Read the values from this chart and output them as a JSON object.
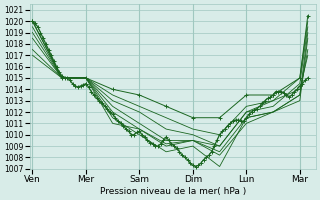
{
  "bg_color": "#d8ece8",
  "grid_color": "#a0c8c0",
  "line_color": "#1a6620",
  "marker_color": "#1a6620",
  "ylabel_bottom": "Pression niveau de la mer( hPa )",
  "ylim": [
    1007,
    1021.5
  ],
  "yticks": [
    1007,
    1008,
    1009,
    1010,
    1011,
    1012,
    1013,
    1014,
    1015,
    1016,
    1017,
    1018,
    1019,
    1020,
    1021
  ],
  "xtick_labels": [
    "Ven",
    "Mer",
    "Sam",
    "Dim",
    "Lun",
    "Mar"
  ],
  "xtick_positions": [
    0,
    1,
    2,
    3,
    4,
    5
  ],
  "xlim": [
    -0.05,
    5.3
  ],
  "series": [
    {
      "x": [
        0.0,
        0.55,
        1.0,
        1.5,
        2.0,
        2.5,
        3.0,
        3.5,
        4.0,
        4.5,
        5.0,
        5.15
      ],
      "y": [
        1020.0,
        1015.0,
        1015.0,
        1014.0,
        1013.5,
        1012.5,
        1011.5,
        1011.5,
        1013.5,
        1013.5,
        1015.0,
        1020.5
      ],
      "with_markers": true
    },
    {
      "x": [
        0.0,
        0.55,
        1.0,
        1.5,
        2.0,
        2.5,
        3.0,
        3.5,
        4.0,
        4.5,
        5.0,
        5.15
      ],
      "y": [
        1020.0,
        1015.0,
        1015.0,
        1013.5,
        1012.5,
        1011.5,
        1010.5,
        1010.0,
        1012.5,
        1013.0,
        1015.0,
        1020.0
      ],
      "with_markers": false
    },
    {
      "x": [
        0.0,
        0.55,
        1.0,
        1.5,
        2.0,
        2.5,
        3.0,
        3.5,
        4.0,
        4.5,
        5.0,
        5.15
      ],
      "y": [
        1019.5,
        1015.0,
        1015.0,
        1013.0,
        1012.0,
        1010.5,
        1010.0,
        1009.0,
        1012.0,
        1012.5,
        1014.5,
        1019.5
      ],
      "with_markers": false
    },
    {
      "x": [
        0.0,
        0.55,
        1.0,
        1.5,
        2.0,
        2.5,
        3.0,
        3.5,
        4.0,
        4.5,
        5.0,
        5.15
      ],
      "y": [
        1019.0,
        1015.0,
        1015.0,
        1012.5,
        1011.0,
        1009.5,
        1009.5,
        1008.5,
        1011.5,
        1012.0,
        1013.5,
        1019.0
      ],
      "with_markers": false
    },
    {
      "x": [
        0.0,
        0.55,
        1.0,
        1.5,
        2.0,
        2.5,
        3.0,
        3.5,
        4.0,
        4.5,
        5.0,
        5.15
      ],
      "y": [
        1018.5,
        1015.0,
        1015.0,
        1012.0,
        1010.5,
        1009.0,
        1009.5,
        1008.2,
        1011.0,
        1012.0,
        1013.0,
        1018.5
      ],
      "with_markers": false
    },
    {
      "x": [
        0.0,
        0.55,
        1.0,
        1.5,
        2.0,
        2.5,
        3.0,
        3.5,
        4.0,
        4.5,
        5.0,
        5.15
      ],
      "y": [
        1017.5,
        1015.0,
        1015.0,
        1011.5,
        1010.0,
        1008.5,
        1009.0,
        1007.2,
        1011.5,
        1012.0,
        1013.5,
        1017.5
      ],
      "with_markers": false
    },
    {
      "x": [
        0.0,
        0.55,
        1.0,
        1.5,
        2.0,
        2.5,
        3.0,
        3.5,
        4.0,
        4.5,
        5.0,
        5.15
      ],
      "y": [
        1017.0,
        1015.0,
        1015.0,
        1011.0,
        1010.5,
        1009.2,
        1009.5,
        1009.0,
        1012.0,
        1013.0,
        1014.0,
        1017.0
      ],
      "with_markers": false
    }
  ],
  "detailed_series": {
    "x_ven_mer": [
      0.0,
      0.05,
      0.1,
      0.15,
      0.2,
      0.25,
      0.3,
      0.35,
      0.4,
      0.45,
      0.5,
      0.55,
      0.6,
      0.65,
      0.7,
      0.75,
      0.8,
      0.85,
      0.9,
      0.95,
      1.0
    ],
    "y_ven_mer": [
      1020.0,
      1019.8,
      1019.5,
      1019.0,
      1018.5,
      1018.0,
      1017.5,
      1017.0,
      1016.5,
      1016.0,
      1015.5,
      1015.2,
      1015.0,
      1015.0,
      1014.8,
      1014.5,
      1014.3,
      1014.2,
      1014.3,
      1014.4,
      1014.5
    ],
    "x_main": [
      1.0,
      1.05,
      1.1,
      1.15,
      1.2,
      1.25,
      1.3,
      1.35,
      1.4,
      1.45,
      1.5,
      1.55,
      1.6,
      1.65,
      1.7,
      1.75,
      1.8,
      1.85,
      1.9,
      1.95,
      2.0,
      2.05,
      2.1,
      2.15,
      2.2,
      2.25,
      2.3,
      2.35,
      2.4,
      2.45,
      2.5,
      2.55,
      2.6,
      2.65,
      2.7,
      2.75,
      2.8,
      2.85,
      2.9,
      2.95,
      3.0,
      3.05,
      3.1,
      3.15,
      3.2,
      3.25,
      3.3,
      3.35,
      3.4,
      3.45,
      3.5,
      3.55,
      3.6,
      3.65,
      3.7,
      3.75,
      3.8,
      3.85,
      3.9,
      3.95,
      4.0,
      4.05,
      4.1,
      4.15,
      4.2,
      4.25,
      4.3,
      4.35,
      4.4,
      4.45,
      4.5,
      4.55,
      4.6,
      4.65,
      4.7,
      4.75,
      4.8,
      4.85,
      4.9,
      4.95,
      5.0,
      5.05,
      5.1,
      5.15
    ],
    "y_main": [
      1014.5,
      1014.2,
      1013.8,
      1013.5,
      1013.2,
      1013.0,
      1012.8,
      1012.5,
      1012.3,
      1012.0,
      1011.8,
      1011.5,
      1011.2,
      1011.0,
      1010.8,
      1010.5,
      1010.3,
      1010.0,
      1010.0,
      1010.2,
      1010.3,
      1010.0,
      1009.8,
      1009.5,
      1009.3,
      1009.2,
      1009.0,
      1009.0,
      1009.2,
      1009.5,
      1009.8,
      1009.5,
      1009.2,
      1009.0,
      1008.8,
      1008.5,
      1008.2,
      1008.0,
      1007.8,
      1007.5,
      1007.3,
      1007.2,
      1007.3,
      1007.5,
      1007.8,
      1008.0,
      1008.2,
      1008.5,
      1009.0,
      1009.5,
      1010.0,
      1010.3,
      1010.5,
      1010.8,
      1011.0,
      1011.2,
      1011.3,
      1011.3,
      1011.2,
      1011.2,
      1011.5,
      1011.8,
      1012.0,
      1012.2,
      1012.3,
      1012.5,
      1012.8,
      1013.0,
      1013.2,
      1013.3,
      1013.5,
      1013.8,
      1013.8,
      1013.8,
      1013.7,
      1013.5,
      1013.3,
      1013.5,
      1013.8,
      1014.0,
      1014.3,
      1014.5,
      1014.8,
      1015.0
    ]
  }
}
